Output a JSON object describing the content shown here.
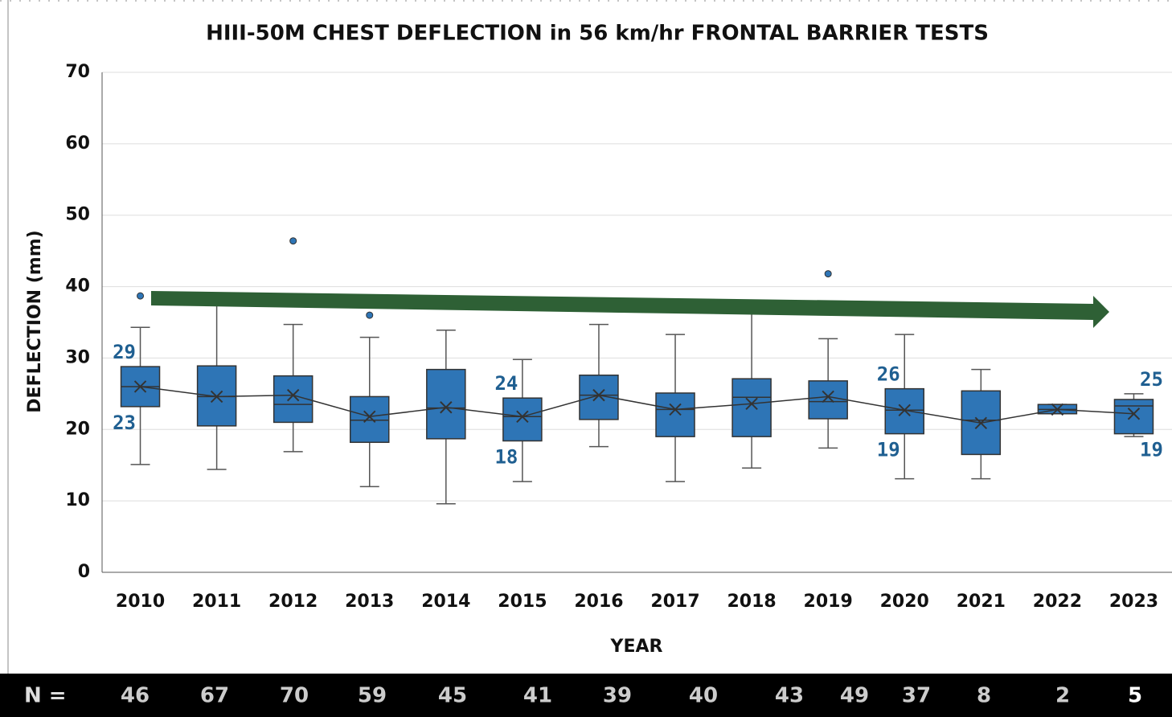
{
  "chart_data": {
    "type": "box",
    "title": "HIII-50M CHEST DEFLECTION in 56 km/hr FRONTAL BARRIER TESTS",
    "x_label": "YEAR",
    "y_label": "DEFLECTION (mm)",
    "categories": [
      "2010",
      "2011",
      "2012",
      "2013",
      "2014",
      "2015",
      "2016",
      "2017",
      "2018",
      "2019",
      "2020",
      "2021",
      "2022",
      "2023"
    ],
    "color": "#2e75b6",
    "label_color": "#1f5f91",
    "boxes": [
      {
        "low": 15.1,
        "q1": 23.2,
        "median": 26.0,
        "q3": 28.8,
        "high": 34.3,
        "mean": 26.0,
        "outliers": [
          38.7
        ],
        "value_labels": {
          "q3": "29",
          "q1": "23"
        }
      },
      {
        "low": 14.4,
        "q1": 20.5,
        "median": 24.6,
        "q3": 28.9,
        "high": 37.9,
        "mean": 24.6,
        "outliers": []
      },
      {
        "low": 16.9,
        "q1": 21.0,
        "median": 23.5,
        "q3": 27.5,
        "high": 34.7,
        "mean": 24.8,
        "outliers": [
          46.4
        ]
      },
      {
        "low": 12.0,
        "q1": 18.2,
        "median": 21.3,
        "q3": 24.6,
        "high": 32.9,
        "mean": 21.8,
        "outliers": [
          36.0
        ]
      },
      {
        "low": 9.6,
        "q1": 18.7,
        "median": 23.0,
        "q3": 28.4,
        "high": 33.9,
        "mean": 23.1,
        "outliers": []
      },
      {
        "low": 12.7,
        "q1": 18.4,
        "median": 21.8,
        "q3": 24.4,
        "high": 29.8,
        "mean": 21.8,
        "outliers": [],
        "value_labels": {
          "q3": "24",
          "q1": "18"
        }
      },
      {
        "low": 17.6,
        "q1": 21.4,
        "median": 24.8,
        "q3": 27.6,
        "high": 34.7,
        "mean": 24.8,
        "outliers": []
      },
      {
        "low": 12.7,
        "q1": 19.0,
        "median": 22.8,
        "q3": 25.1,
        "high": 33.3,
        "mean": 22.8,
        "outliers": []
      },
      {
        "low": 14.6,
        "q1": 19.0,
        "median": 24.5,
        "q3": 27.1,
        "high": 37.9,
        "mean": 23.6,
        "outliers": []
      },
      {
        "low": 17.4,
        "q1": 21.5,
        "median": 23.9,
        "q3": 26.8,
        "high": 32.7,
        "mean": 24.6,
        "outliers": [
          41.8
        ]
      },
      {
        "low": 13.1,
        "q1": 19.4,
        "median": 22.7,
        "q3": 25.7,
        "high": 33.3,
        "mean": 22.7,
        "outliers": [],
        "value_labels": {
          "q3": "26",
          "q1": "19"
        }
      },
      {
        "low": 13.1,
        "q1": 16.5,
        "median": 21.3,
        "q3": 25.4,
        "high": 28.4,
        "mean": 20.9,
        "outliers": []
      },
      {
        "low": 22.2,
        "q1": 22.2,
        "median": 22.8,
        "q3": 23.5,
        "high": 23.5,
        "mean": 22.8,
        "outliers": []
      },
      {
        "low": 19.0,
        "q1": 19.4,
        "median": 23.3,
        "q3": 24.2,
        "high": 25.0,
        "mean": 22.2,
        "outliers": [],
        "value_labels": {
          "high": "25",
          "q1": "19"
        }
      }
    ],
    "ylim": [
      0,
      70
    ],
    "yticks": [
      0,
      10,
      20,
      30,
      40,
      50,
      60,
      70
    ],
    "grid": true,
    "n_label": "N =",
    "n": [
      46,
      67,
      70,
      59,
      45,
      41,
      39,
      40,
      43,
      49,
      37,
      8,
      2,
      5
    ]
  }
}
